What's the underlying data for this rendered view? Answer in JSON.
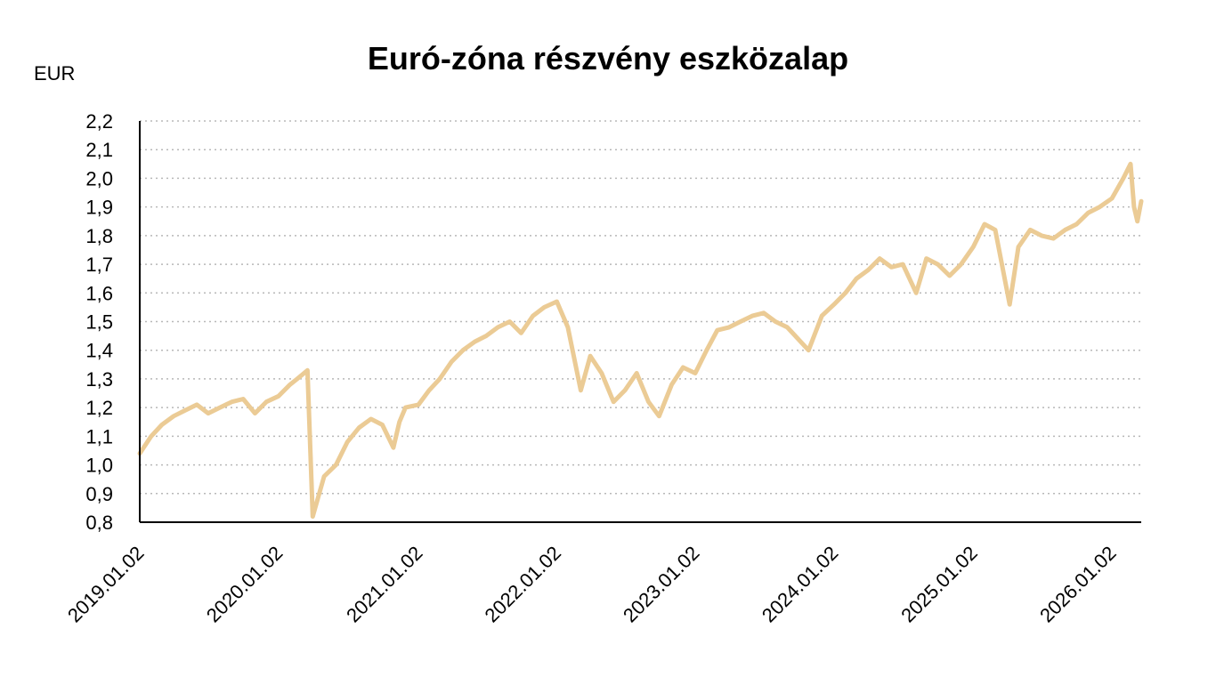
{
  "chart_data": {
    "type": "line",
    "title": "Euró-zóna részvény eszközalap",
    "ylabel": "EUR",
    "xlabel": "",
    "ylim": [
      0.8,
      2.2
    ],
    "y_ticks": [
      "0,8",
      "0,9",
      "1,0",
      "1,1",
      "1,2",
      "1,3",
      "1,4",
      "1,5",
      "1,6",
      "1,7",
      "1,8",
      "1,9",
      "2,0",
      "2,1",
      "2,2"
    ],
    "x_ticks": [
      "2019.01.02",
      "2020.01.02",
      "2021.01.02",
      "2022.01.02",
      "2023.01.02",
      "2024.01.02",
      "2025.01.02",
      "2026.01.02"
    ],
    "grid": "horizontal-dotted",
    "legend": "none",
    "line_color": "#EBCB95",
    "series": [
      {
        "x": [
          "2019-01-02",
          "2019-02-01",
          "2019-03-01",
          "2019-04-01",
          "2019-05-01",
          "2019-06-01",
          "2019-07-01",
          "2019-08-01",
          "2019-09-01",
          "2019-10-01",
          "2019-11-01",
          "2019-12-01",
          "2020-01-02",
          "2020-02-01",
          "2020-02-20",
          "2020-03-18",
          "2020-04-01",
          "2020-05-01",
          "2020-06-01",
          "2020-07-01",
          "2020-08-01",
          "2020-09-01",
          "2020-10-01",
          "2020-10-30",
          "2020-11-15",
          "2020-12-01",
          "2021-01-04",
          "2021-02-01",
          "2021-03-01",
          "2021-04-01",
          "2021-05-01",
          "2021-06-01",
          "2021-07-01",
          "2021-08-01",
          "2021-09-01",
          "2021-10-01",
          "2021-11-01",
          "2021-12-01",
          "2022-01-03",
          "2022-02-01",
          "2022-03-07",
          "2022-04-01",
          "2022-05-01",
          "2022-06-01",
          "2022-07-01",
          "2022-08-01",
          "2022-09-01",
          "2022-09-29",
          "2022-11-01",
          "2022-12-01",
          "2023-01-02",
          "2023-02-01",
          "2023-03-01",
          "2023-04-01",
          "2023-05-01",
          "2023-06-01",
          "2023-07-01",
          "2023-08-01",
          "2023-09-01",
          "2023-10-27",
          "2023-12-01",
          "2024-01-02",
          "2024-02-01",
          "2024-03-01",
          "2024-04-01",
          "2024-05-01",
          "2024-06-01",
          "2024-07-01",
          "2024-08-05",
          "2024-09-01",
          "2024-10-01",
          "2024-11-01",
          "2024-12-01",
          "2025-01-02",
          "2025-02-01",
          "2025-03-01",
          "2025-04-08",
          "2025-05-01",
          "2025-06-01",
          "2025-07-01",
          "2025-08-01",
          "2025-09-01",
          "2025-10-01",
          "2025-11-01",
          "2025-12-01",
          "2026-01-02",
          "2026-02-01",
          "2026-02-20",
          "2026-03-01",
          "2026-03-10",
          "2026-03-20"
        ],
        "y": [
          1.04,
          1.1,
          1.14,
          1.17,
          1.19,
          1.21,
          1.18,
          1.2,
          1.22,
          1.23,
          1.18,
          1.22,
          1.24,
          1.28,
          1.3,
          1.33,
          0.82,
          0.96,
          1.0,
          1.08,
          1.13,
          1.16,
          1.14,
          1.06,
          1.15,
          1.2,
          1.21,
          1.26,
          1.3,
          1.36,
          1.4,
          1.43,
          1.45,
          1.48,
          1.5,
          1.46,
          1.52,
          1.55,
          1.57,
          1.48,
          1.26,
          1.38,
          1.32,
          1.22,
          1.26,
          1.32,
          1.22,
          1.17,
          1.28,
          1.34,
          1.32,
          1.4,
          1.47,
          1.48,
          1.5,
          1.52,
          1.53,
          1.5,
          1.48,
          1.4,
          1.52,
          1.56,
          1.6,
          1.65,
          1.68,
          1.72,
          1.69,
          1.7,
          1.6,
          1.72,
          1.7,
          1.66,
          1.7,
          1.76,
          1.84,
          1.82,
          1.56,
          1.76,
          1.82,
          1.8,
          1.79,
          1.82,
          1.84,
          1.88,
          1.9,
          1.93,
          2.0,
          2.05,
          1.9,
          1.85,
          1.92
        ]
      }
    ]
  }
}
